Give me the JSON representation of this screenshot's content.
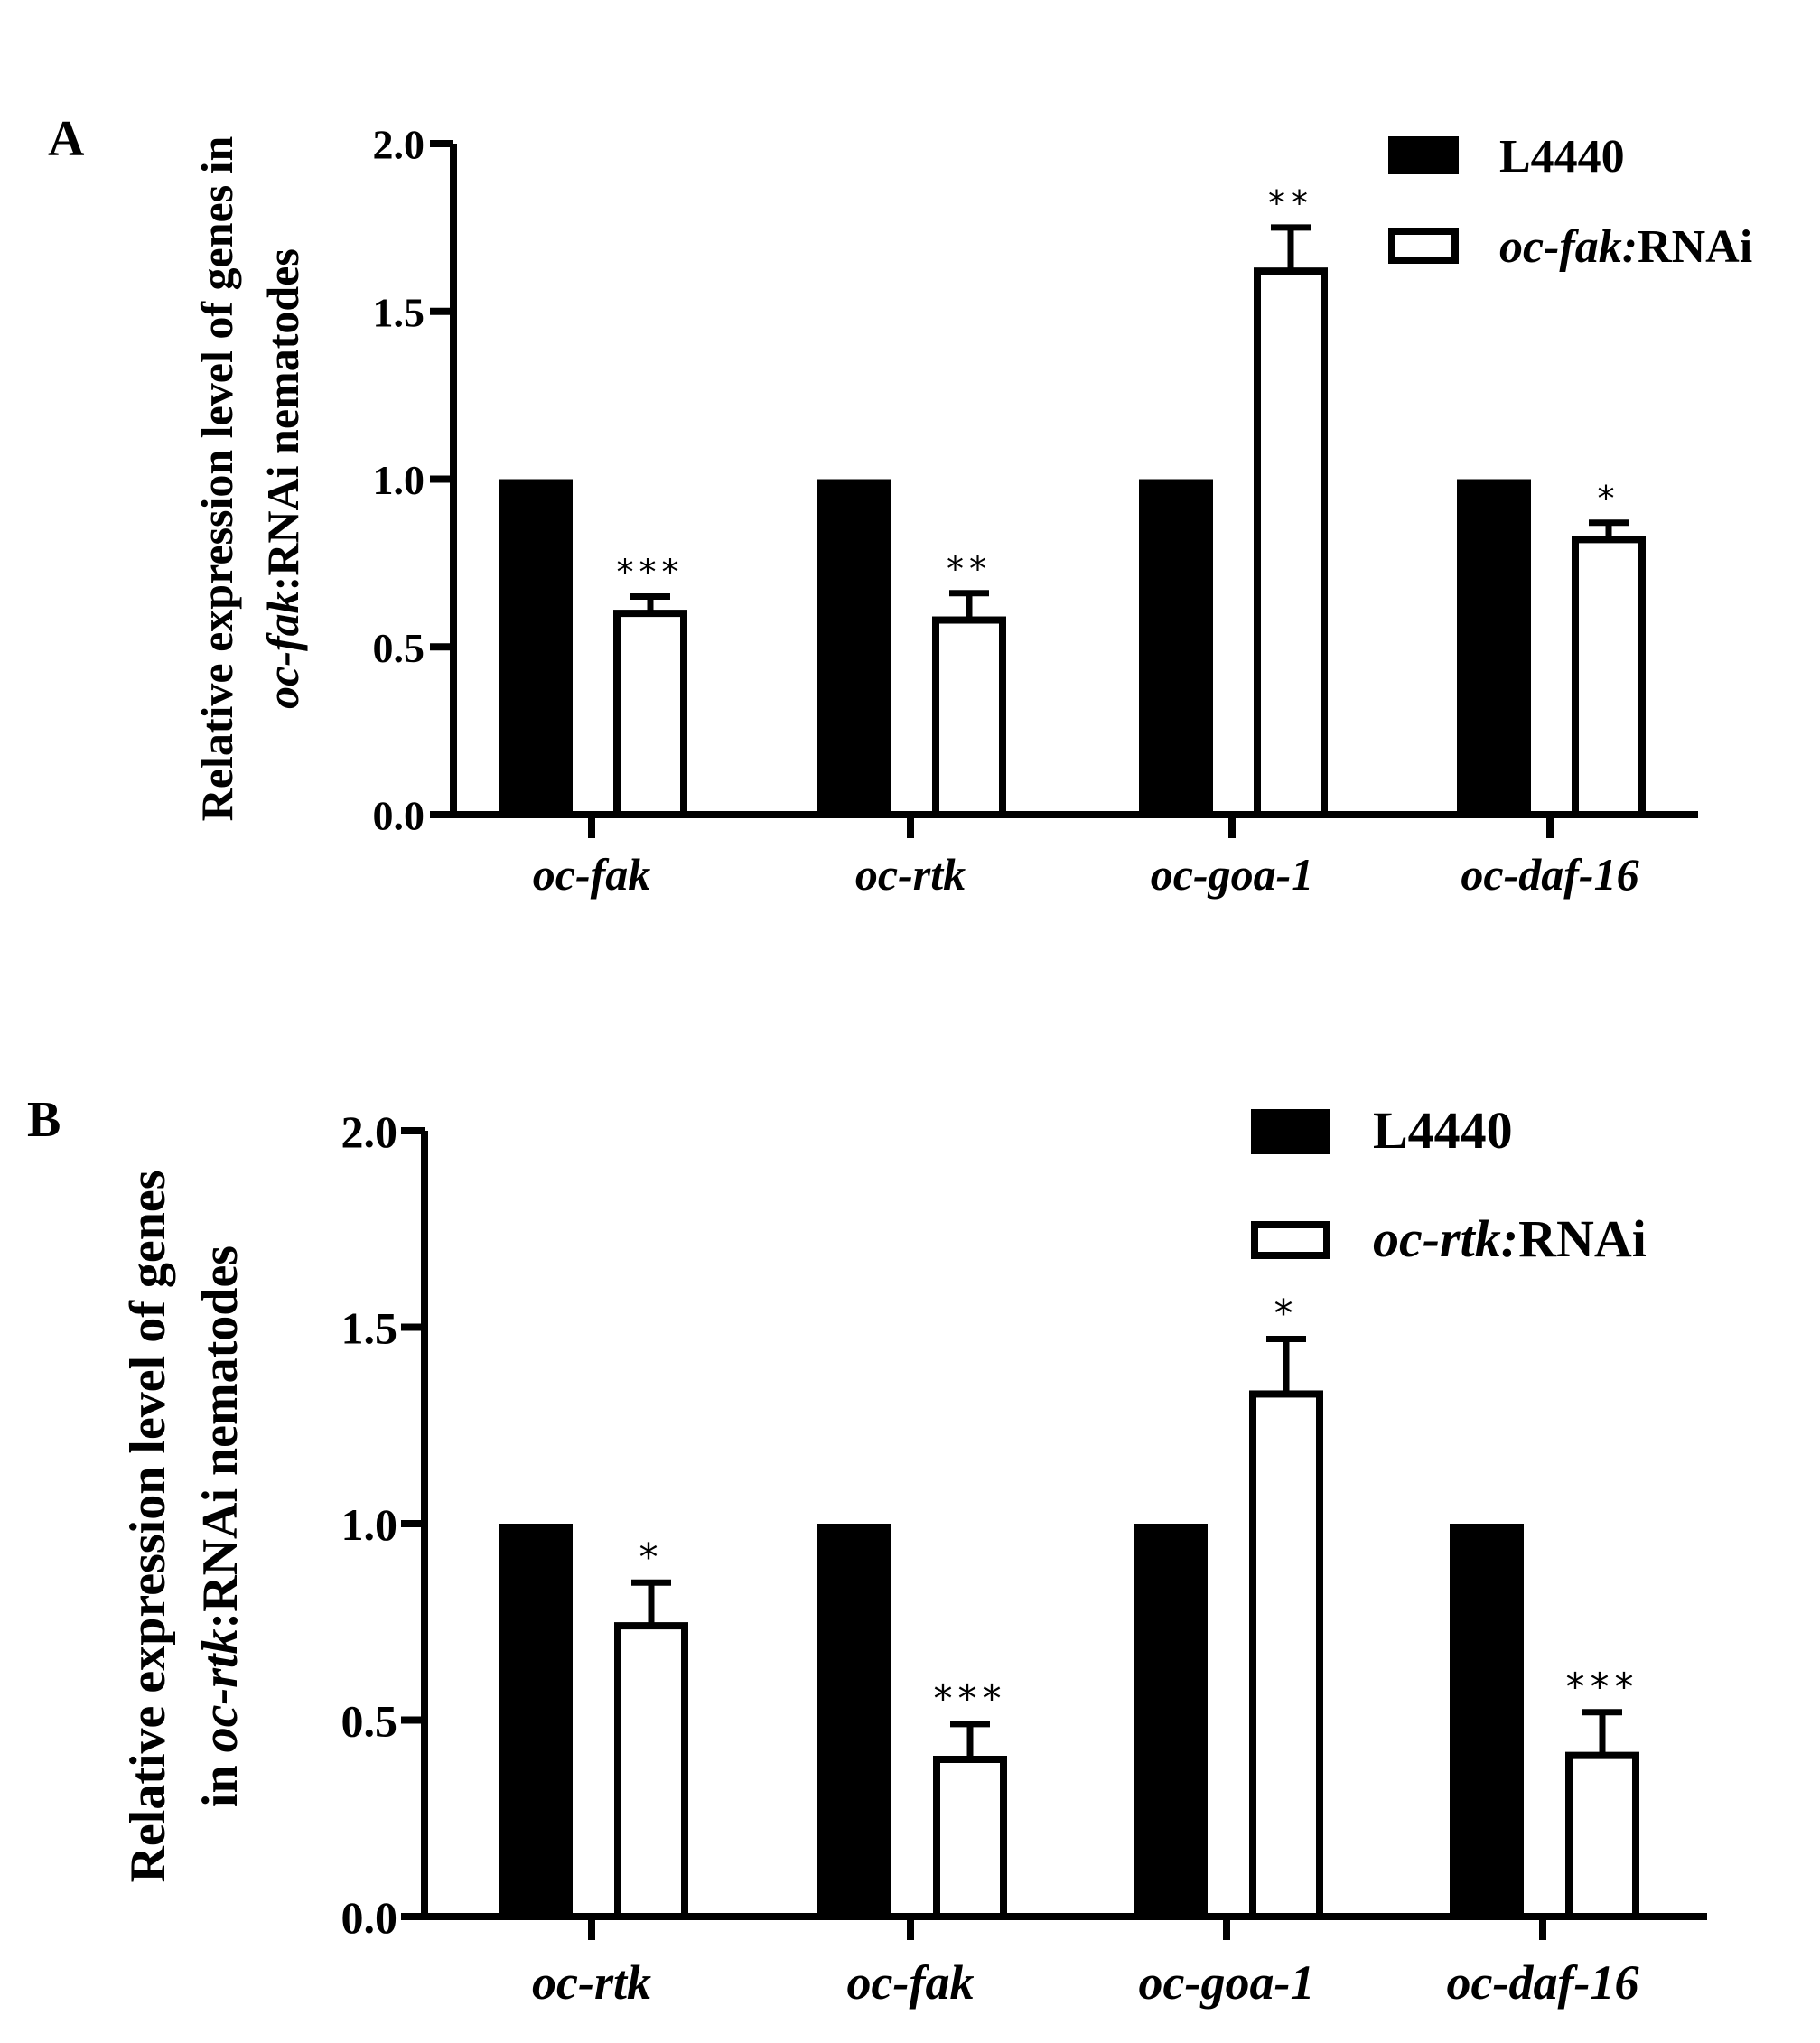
{
  "chart_data": [
    {
      "panel_label": "A",
      "type": "bar",
      "categories": [
        "oc-fak",
        "oc-rtk",
        "oc-goa-1",
        "oc-daf-16"
      ],
      "series": [
        {
          "name": "L4440",
          "values": [
            1.0,
            1.0,
            1.0,
            1.0
          ],
          "errors": [
            0,
            0,
            0,
            0
          ],
          "style": "filled"
        },
        {
          "name_italic": "oc-fak:",
          "name_plain": "RNAi",
          "values": [
            0.6,
            0.58,
            1.62,
            0.82
          ],
          "errors": [
            0.05,
            0.08,
            0.13,
            0.05
          ],
          "style": "hollow"
        }
      ],
      "significance": [
        "***",
        "**",
        "**",
        "*"
      ],
      "ylabel_line1": "Relative expression level of genes in",
      "ylabel_line2_italic": "oc-fak",
      "ylabel_line2_plain": ":RNAi nematodes",
      "ylim": [
        0,
        2
      ],
      "yticks": [
        "0.0",
        "0.5",
        "1.0",
        "1.5",
        "2.0"
      ],
      "legend_position": "top-right"
    },
    {
      "panel_label": "B",
      "type": "bar",
      "categories": [
        "oc-rtk",
        "oc-fak",
        "oc-goa-1",
        "oc-daf-16"
      ],
      "series": [
        {
          "name": "L4440",
          "values": [
            1.0,
            1.0,
            1.0,
            1.0
          ],
          "errors": [
            0,
            0,
            0,
            0
          ],
          "style": "filled"
        },
        {
          "name_italic": "oc-rtk:",
          "name_plain": "RNAi",
          "values": [
            0.74,
            0.4,
            1.33,
            0.41
          ],
          "errors": [
            0.11,
            0.09,
            0.14,
            0.11
          ],
          "style": "hollow"
        }
      ],
      "significance": [
        "*",
        "***",
        "*",
        "***"
      ],
      "ylabel_line1": "Relative expression level of genes",
      "ylabel_line2_plain_prefix": "in ",
      "ylabel_line2_italic": "oc-rtk",
      "ylabel_line2_plain": ":RNAi nematodes",
      "ylim": [
        0,
        2
      ],
      "yticks": [
        "0.0",
        "0.5",
        "1.0",
        "1.5",
        "2.0"
      ],
      "legend_position": "top-right"
    }
  ]
}
